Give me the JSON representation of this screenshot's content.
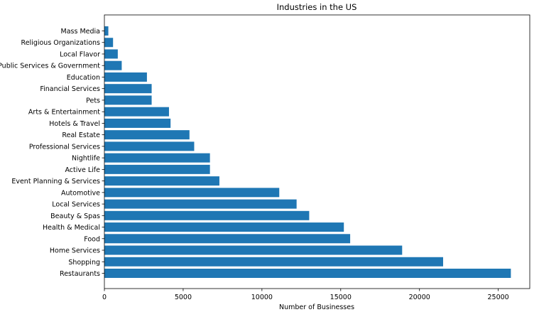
{
  "chart_data": {
    "type": "bar",
    "orientation": "horizontal",
    "title": "Industries in the US",
    "xlabel": "Number of Businesses",
    "ylabel": "",
    "xlim": [
      0,
      27000
    ],
    "xticks": [
      0,
      5000,
      10000,
      15000,
      20000,
      25000
    ],
    "grid": false,
    "bar_color": "#1f77b4",
    "categories": [
      "Restaurants",
      "Shopping",
      "Home Services",
      "Food",
      "Health & Medical",
      "Beauty & Spas",
      "Local Services",
      "Automotive",
      "Event Planning & Services",
      "Active Life",
      "Nightlife",
      "Professional Services",
      "Real Estate",
      "Hotels & Travel",
      "Arts & Entertainment",
      "Pets",
      "Financial Services",
      "Education",
      "Public Services & Government",
      "Local Flavor",
      "Religious Organizations",
      "Mass Media"
    ],
    "values": [
      25800,
      21500,
      18900,
      15600,
      15200,
      13000,
      12200,
      11100,
      7300,
      6700,
      6700,
      5700,
      5400,
      4200,
      4100,
      3000,
      3000,
      2700,
      1100,
      850,
      550,
      250
    ]
  }
}
